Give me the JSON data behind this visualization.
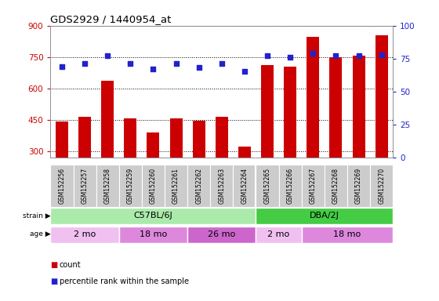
{
  "title": "GDS2929 / 1440954_at",
  "samples": [
    "GSM152256",
    "GSM152257",
    "GSM152258",
    "GSM152259",
    "GSM152260",
    "GSM152261",
    "GSM152262",
    "GSM152263",
    "GSM152264",
    "GSM152265",
    "GSM152266",
    "GSM152267",
    "GSM152268",
    "GSM152269",
    "GSM152270"
  ],
  "counts": [
    440,
    465,
    635,
    455,
    390,
    457,
    445,
    463,
    320,
    710,
    705,
    845,
    750,
    755,
    855
  ],
  "percentile_ranks": [
    69,
    71,
    77,
    71,
    67,
    71,
    68,
    71,
    65,
    77,
    76,
    79,
    77,
    77,
    78
  ],
  "ylim_left": [
    270,
    900
  ],
  "ylim_right": [
    0,
    100
  ],
  "yticks_left": [
    300,
    450,
    600,
    750,
    900
  ],
  "yticks_right": [
    0,
    25,
    50,
    75,
    100
  ],
  "bar_color": "#cc0000",
  "dot_color": "#2222cc",
  "strain_groups": [
    {
      "label": "C57BL/6J",
      "start": 0,
      "end": 9,
      "color": "#aaeaaa"
    },
    {
      "label": "DBA/2J",
      "start": 9,
      "end": 15,
      "color": "#44cc44"
    }
  ],
  "age_groups": [
    {
      "label": "2 mo",
      "start": 0,
      "end": 3,
      "color": "#f0c0f0"
    },
    {
      "label": "18 mo",
      "start": 3,
      "end": 6,
      "color": "#dd88dd"
    },
    {
      "label": "26 mo",
      "start": 6,
      "end": 9,
      "color": "#cc66cc"
    },
    {
      "label": "2 mo",
      "start": 9,
      "end": 11,
      "color": "#f0c0f0"
    },
    {
      "label": "18 mo",
      "start": 11,
      "end": 15,
      "color": "#dd88dd"
    }
  ],
  "grid_color": "#000000",
  "background_color": "#ffffff",
  "tick_label_color_left": "#cc0000",
  "tick_label_color_right": "#2222cc",
  "bar_width": 0.55,
  "xticklabel_bg": "#cccccc",
  "plot_bg": "#ffffff"
}
